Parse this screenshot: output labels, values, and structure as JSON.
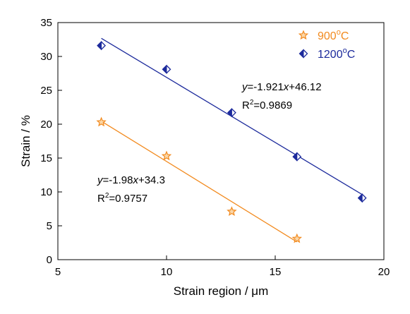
{
  "chart_data": {
    "type": "scatter",
    "xlabel": "Strain region / μm",
    "ylabel": "Strain / %",
    "xlim": [
      5,
      20
    ],
    "ylim": [
      0,
      35
    ],
    "xticks": [
      5,
      10,
      15,
      20
    ],
    "yticks": [
      0,
      5,
      10,
      15,
      20,
      25,
      30,
      35
    ],
    "grid": false,
    "legend_position": "top-right",
    "series": [
      {
        "name": "900°C",
        "marker": "star",
        "color": "#F28A1E",
        "points": [
          {
            "x": 7,
            "y": 20.3
          },
          {
            "x": 10,
            "y": 15.3
          },
          {
            "x": 13,
            "y": 7.1
          },
          {
            "x": 16,
            "y": 3.1
          }
        ],
        "fit": {
          "slope": -1.98,
          "intercept": 34.3,
          "x_range": [
            7,
            16
          ]
        },
        "equation": {
          "y_prefix": "y",
          "eq_mid": "=-1.98",
          "x_var": "x",
          "eq_tail": "+34.3",
          "r2_label": "R",
          "r2_sup": "2",
          "r2_value": "=0.9757"
        }
      },
      {
        "name": "1200°C",
        "marker": "diamond",
        "color": "#1C2A9C",
        "points": [
          {
            "x": 7,
            "y": 31.6
          },
          {
            "x": 10,
            "y": 28.1
          },
          {
            "x": 13,
            "y": 21.7
          },
          {
            "x": 16,
            "y": 15.2
          },
          {
            "x": 19,
            "y": 9.1
          }
        ],
        "fit": {
          "slope": -1.921,
          "intercept": 46.12,
          "x_range": [
            7,
            19
          ]
        },
        "equation": {
          "y_prefix": "y",
          "eq_mid": "=-1.921",
          "x_var": "x",
          "eq_tail": "+46.12",
          "r2_label": "R",
          "r2_sup": "2",
          "r2_value": "=0.9869"
        }
      }
    ],
    "legend": [
      {
        "base": "900",
        "sup": "o",
        "unit": "C"
      },
      {
        "base": "1200",
        "sup": "o",
        "unit": "C"
      }
    ]
  }
}
